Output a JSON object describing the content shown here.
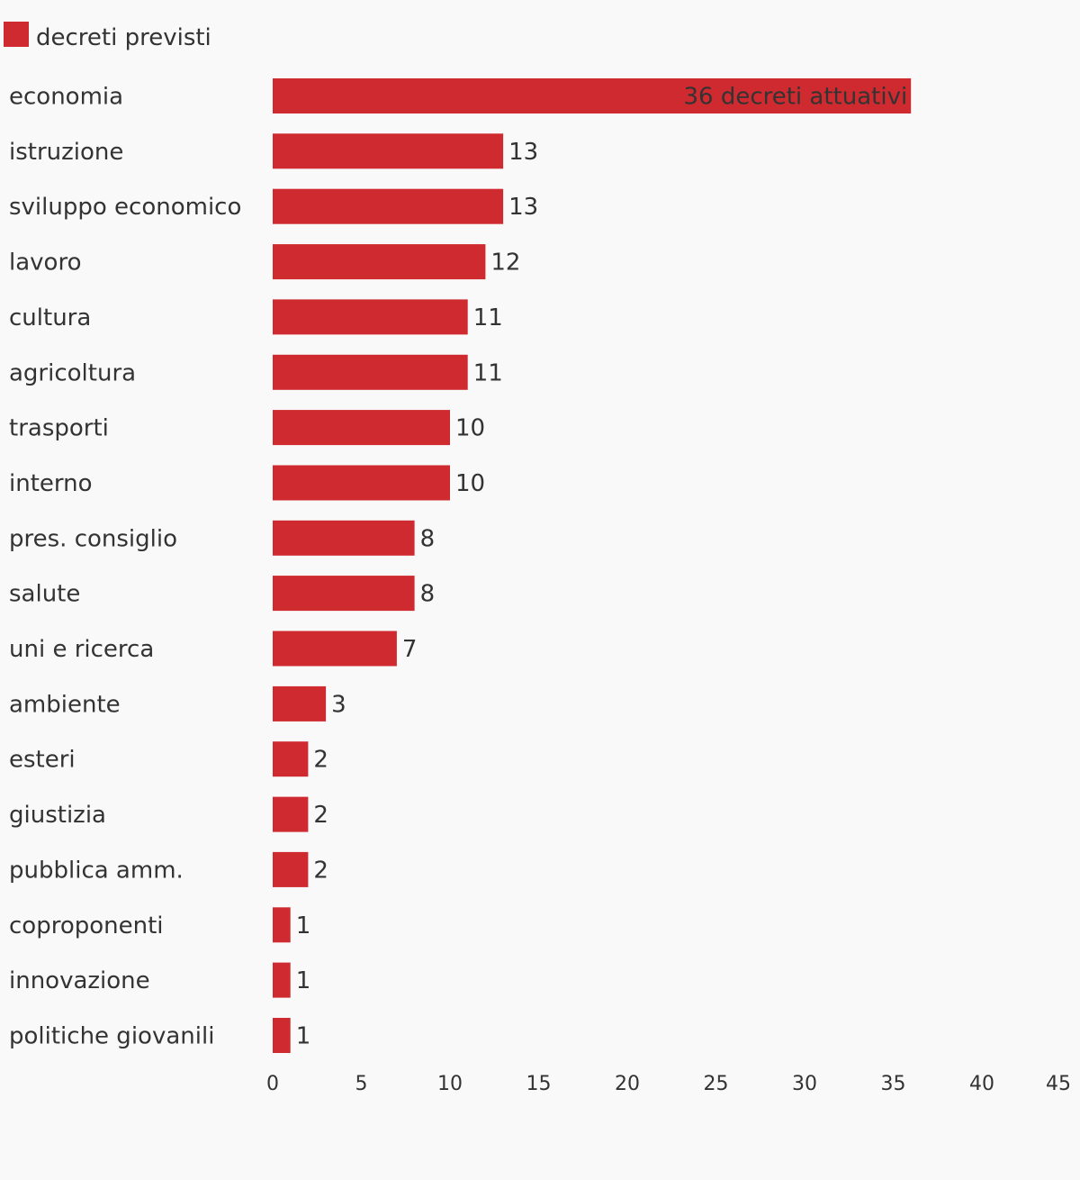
{
  "chart_data": {
    "type": "bar",
    "orientation": "horizontal",
    "legend": {
      "label": "decreti previsti",
      "placement": "top-left",
      "color": "#cf2a30"
    },
    "bar_color": "#cf2a30",
    "categories": [
      "economia",
      "istruzione",
      "sviluppo economico",
      "lavoro",
      "cultura",
      "agricoltura",
      "trasporti",
      "interno",
      "pres. consiglio",
      "salute",
      "uni e ricerca",
      "ambiente",
      "esteri",
      "giustizia",
      "pubblica amm.",
      "coproponenti",
      "innovazione",
      "politiche giovanili"
    ],
    "series": [
      {
        "name": "decreti previsti",
        "values": [
          36,
          13,
          13,
          12,
          11,
          11,
          10,
          10,
          8,
          8,
          7,
          3,
          2,
          2,
          2,
          1,
          1,
          1
        ]
      }
    ],
    "value_labels": [
      "36 decreti attuativi",
      "13",
      "13",
      "12",
      "11",
      "11",
      "10",
      "10",
      "8",
      "8",
      "7",
      "3",
      "2",
      "2",
      "2",
      "1",
      "1",
      "1"
    ],
    "xlim": [
      0,
      45
    ],
    "xticks": [
      "0",
      "5",
      "10",
      "15",
      "20",
      "25",
      "30",
      "35",
      "40",
      "45"
    ],
    "grid": false
  }
}
